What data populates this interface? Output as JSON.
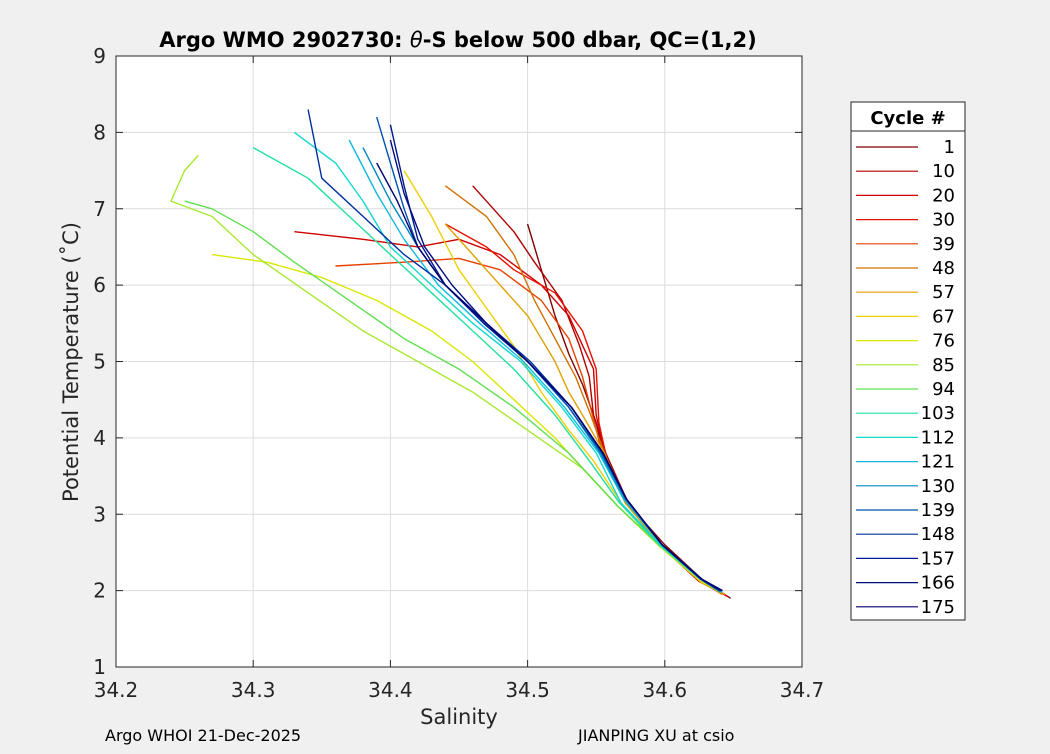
{
  "chart_data": {
    "type": "line",
    "title_prefix": "Argo WMO 2902730: ",
    "title_theta": "θ",
    "title_suffix": "-S below 500 dbar,  QC=(1,2)",
    "xlabel": "Salinity",
    "ylabel": "Potential Temperature (˚C)",
    "xlim": [
      34.2,
      34.7
    ],
    "ylim": [
      1,
      9
    ],
    "xticks": [
      34.2,
      34.3,
      34.4,
      34.5,
      34.6,
      34.7
    ],
    "yticks": [
      1,
      2,
      3,
      4,
      5,
      6,
      7,
      8,
      9
    ],
    "xtick_labels": [
      "34.2",
      "34.3",
      "34.4",
      "34.5",
      "34.6",
      "34.7"
    ],
    "ytick_labels": [
      "1",
      "2",
      "3",
      "4",
      "5",
      "6",
      "7",
      "8",
      "9"
    ],
    "grid": true,
    "legend": {
      "title": "Cycle #",
      "placement": "outside-right",
      "entries": [
        {
          "label": "1",
          "color": "#800000"
        },
        {
          "label": "10",
          "color": "#b00000"
        },
        {
          "label": "20",
          "color": "#d00000"
        },
        {
          "label": "30",
          "color": "#e81000"
        },
        {
          "label": "39",
          "color": "#e84000"
        },
        {
          "label": "48",
          "color": "#d07000"
        },
        {
          "label": "57",
          "color": "#e0a000"
        },
        {
          "label": "67",
          "color": "#f0d000"
        },
        {
          "label": "76",
          "color": "#d8e800"
        },
        {
          "label": "85",
          "color": "#a8e830"
        },
        {
          "label": "94",
          "color": "#60e050"
        },
        {
          "label": "103",
          "color": "#20e0a0"
        },
        {
          "label": "112",
          "color": "#10d8d0"
        },
        {
          "label": "121",
          "color": "#10b8e0"
        },
        {
          "label": "130",
          "color": "#0088c0"
        },
        {
          "label": "139",
          "color": "#0050b0"
        },
        {
          "label": "148",
          "color": "#0030a0"
        },
        {
          "label": "157",
          "color": "#001890"
        },
        {
          "label": "166",
          "color": "#000c80"
        },
        {
          "label": "175",
          "color": "#000070"
        }
      ]
    },
    "series": [
      {
        "name": "1",
        "color": "#800000",
        "x": [
          34.648,
          34.63,
          34.6,
          34.57,
          34.555,
          34.55,
          34.54,
          34.53,
          34.52,
          34.51,
          34.5
        ],
        "y": [
          1.9,
          2.1,
          2.6,
          3.2,
          3.8,
          4.2,
          4.7,
          5.1,
          5.6,
          6.2,
          6.8
        ]
      },
      {
        "name": "10",
        "color": "#b00000",
        "x": [
          34.646,
          34.628,
          34.598,
          34.572,
          34.557,
          34.548,
          34.545,
          34.538,
          34.525,
          34.505,
          34.49,
          34.46
        ],
        "y": [
          1.92,
          2.1,
          2.6,
          3.2,
          3.8,
          4.3,
          4.8,
          5.2,
          5.8,
          6.3,
          6.7,
          7.3
        ]
      },
      {
        "name": "20",
        "color": "#d00000",
        "x": [
          34.644,
          34.625,
          34.596,
          34.57,
          34.556,
          34.55,
          34.548,
          34.53,
          34.51,
          34.48,
          34.45,
          34.42,
          34.38,
          34.33
        ],
        "y": [
          1.95,
          2.12,
          2.6,
          3.2,
          3.8,
          4.3,
          4.9,
          5.6,
          6.0,
          6.4,
          6.6,
          6.5,
          6.6,
          6.7
        ]
      },
      {
        "name": "30",
        "color": "#e81000",
        "x": [
          34.645,
          34.63,
          34.6,
          34.575,
          34.558,
          34.552,
          34.55,
          34.54,
          34.52,
          34.49,
          34.47,
          34.44
        ],
        "y": [
          1.93,
          2.1,
          2.55,
          3.1,
          3.7,
          4.2,
          4.9,
          5.4,
          5.9,
          6.2,
          6.5,
          6.8
        ]
      },
      {
        "name": "39",
        "color": "#e84000",
        "x": [
          34.642,
          34.626,
          34.598,
          34.573,
          34.555,
          34.548,
          34.54,
          34.53,
          34.51,
          34.48,
          34.45,
          34.41,
          34.36
        ],
        "y": [
          1.95,
          2.12,
          2.58,
          3.15,
          3.75,
          4.25,
          4.8,
          5.3,
          5.8,
          6.2,
          6.35,
          6.3,
          6.25
        ]
      },
      {
        "name": "48",
        "color": "#d07000",
        "x": [
          34.643,
          34.628,
          34.598,
          34.572,
          34.556,
          34.546,
          34.535,
          34.52,
          34.505,
          34.49,
          34.47,
          34.44
        ],
        "y": [
          1.95,
          2.1,
          2.6,
          3.15,
          3.8,
          4.3,
          4.8,
          5.3,
          5.8,
          6.4,
          6.9,
          7.3
        ]
      },
      {
        "name": "57",
        "color": "#e0a000",
        "x": [
          34.644,
          34.627,
          34.597,
          34.571,
          34.556,
          34.54,
          34.53,
          34.52,
          34.5,
          34.47,
          34.44
        ],
        "y": [
          1.95,
          2.1,
          2.6,
          3.15,
          3.8,
          4.3,
          4.6,
          5.0,
          5.6,
          6.2,
          6.8
        ]
      },
      {
        "name": "67",
        "color": "#f0d000",
        "x": [
          34.642,
          34.626,
          34.595,
          34.57,
          34.548,
          34.53,
          34.51,
          34.49,
          34.47,
          34.45,
          34.43,
          34.41
        ],
        "y": [
          1.98,
          2.12,
          2.6,
          3.1,
          3.7,
          4.1,
          4.6,
          5.2,
          5.7,
          6.2,
          6.9,
          7.5
        ]
      },
      {
        "name": "76",
        "color": "#d8e800",
        "x": [
          34.64,
          34.625,
          34.595,
          34.566,
          34.54,
          34.52,
          34.49,
          34.46,
          34.43,
          34.39,
          34.35,
          34.31,
          34.27
        ],
        "y": [
          1.98,
          2.15,
          2.6,
          3.1,
          3.6,
          4.0,
          4.5,
          5.0,
          5.4,
          5.8,
          6.1,
          6.3,
          6.4
        ]
      },
      {
        "name": "85",
        "color": "#a8e830",
        "x": [
          34.64,
          34.625,
          34.595,
          34.566,
          34.54,
          34.5,
          34.46,
          34.42,
          34.38,
          34.34,
          34.3,
          34.27,
          34.24,
          34.25,
          34.26
        ],
        "y": [
          1.98,
          2.15,
          2.6,
          3.1,
          3.6,
          4.1,
          4.6,
          5.0,
          5.4,
          5.9,
          6.4,
          6.9,
          7.1,
          7.5,
          7.7
        ]
      },
      {
        "name": "94",
        "color": "#60e050",
        "x": [
          34.641,
          34.626,
          34.596,
          34.566,
          34.53,
          34.49,
          34.45,
          34.41,
          34.37,
          34.33,
          34.3,
          34.27,
          34.25
        ],
        "y": [
          1.98,
          2.15,
          2.6,
          3.1,
          3.8,
          4.4,
          4.9,
          5.3,
          5.8,
          6.3,
          6.7,
          7.0,
          7.1
        ]
      },
      {
        "name": "103",
        "color": "#20e0a0",
        "x": [
          34.641,
          34.626,
          34.596,
          34.567,
          34.545,
          34.52,
          34.49,
          34.46,
          34.43,
          34.4,
          34.37,
          34.34,
          34.3
        ],
        "y": [
          1.98,
          2.15,
          2.6,
          3.15,
          3.7,
          4.3,
          4.9,
          5.4,
          5.9,
          6.4,
          6.9,
          7.4,
          7.8
        ]
      },
      {
        "name": "112",
        "color": "#10d8d0",
        "x": [
          34.642,
          34.627,
          34.597,
          34.568,
          34.55,
          34.525,
          34.495,
          34.46,
          34.43,
          34.4,
          34.38,
          34.36,
          34.33
        ],
        "y": [
          1.98,
          2.15,
          2.6,
          3.15,
          3.8,
          4.4,
          5.0,
          5.5,
          6.0,
          6.5,
          7.1,
          7.6,
          8.0
        ]
      },
      {
        "name": "121",
        "color": "#10b8e0",
        "x": [
          34.642,
          34.627,
          34.598,
          34.57,
          34.552,
          34.527,
          34.497,
          34.465,
          34.435,
          34.41,
          34.39,
          34.37
        ],
        "y": [
          1.98,
          2.15,
          2.6,
          3.2,
          3.8,
          4.4,
          5.0,
          5.5,
          6.0,
          6.6,
          7.2,
          7.9
        ]
      },
      {
        "name": "130",
        "color": "#0088c0",
        "x": [
          34.641,
          34.627,
          34.598,
          34.571,
          34.553,
          34.53,
          34.5,
          34.468,
          34.44,
          34.42,
          34.4,
          34.38
        ],
        "y": [
          1.99,
          2.15,
          2.6,
          3.2,
          3.8,
          4.4,
          5.0,
          5.5,
          6.0,
          6.5,
          7.1,
          7.8
        ]
      },
      {
        "name": "139",
        "color": "#0050b0",
        "x": [
          34.64,
          34.626,
          34.598,
          34.572,
          34.554,
          34.53,
          34.5,
          34.47,
          34.44,
          34.42,
          34.41,
          34.4,
          34.39
        ],
        "y": [
          1.99,
          2.15,
          2.6,
          3.2,
          3.8,
          4.4,
          5.0,
          5.5,
          6.0,
          6.5,
          7.0,
          7.6,
          8.2
        ]
      },
      {
        "name": "148",
        "color": "#0030a0",
        "x": [
          34.641,
          34.627,
          34.598,
          34.572,
          34.555,
          34.532,
          34.502,
          34.47,
          34.44,
          34.41,
          34.38,
          34.35,
          34.34
        ],
        "y": [
          2.0,
          2.15,
          2.6,
          3.2,
          3.8,
          4.4,
          5.0,
          5.5,
          6.0,
          6.4,
          6.9,
          7.4,
          8.3
        ]
      },
      {
        "name": "157",
        "color": "#001890",
        "x": [
          34.642,
          34.627,
          34.598,
          34.572,
          34.555,
          34.532,
          34.5,
          34.468,
          34.44,
          34.42,
          34.41,
          34.4
        ],
        "y": [
          2.0,
          2.15,
          2.6,
          3.2,
          3.8,
          4.4,
          5.0,
          5.5,
          6.0,
          6.6,
          7.3,
          8.1
        ]
      },
      {
        "name": "166",
        "color": "#000c80",
        "x": [
          34.641,
          34.627,
          34.598,
          34.572,
          34.555,
          34.532,
          34.5,
          34.47,
          34.445,
          34.425,
          34.41,
          34.4
        ],
        "y": [
          2.0,
          2.15,
          2.6,
          3.2,
          3.8,
          4.4,
          5.0,
          5.5,
          6.0,
          6.5,
          7.2,
          7.9
        ]
      },
      {
        "name": "175",
        "color": "#000070",
        "x": [
          34.642,
          34.627,
          34.598,
          34.572,
          34.555,
          34.532,
          34.5,
          34.47,
          34.44,
          34.42,
          34.405,
          34.39
        ],
        "y": [
          2.0,
          2.15,
          2.6,
          3.2,
          3.8,
          4.4,
          5.0,
          5.5,
          6.0,
          6.5,
          7.1,
          7.6
        ]
      }
    ]
  },
  "footer": {
    "left": "Argo WHOI 21-Dec-2025",
    "right": "JIANPING XU at csio"
  }
}
